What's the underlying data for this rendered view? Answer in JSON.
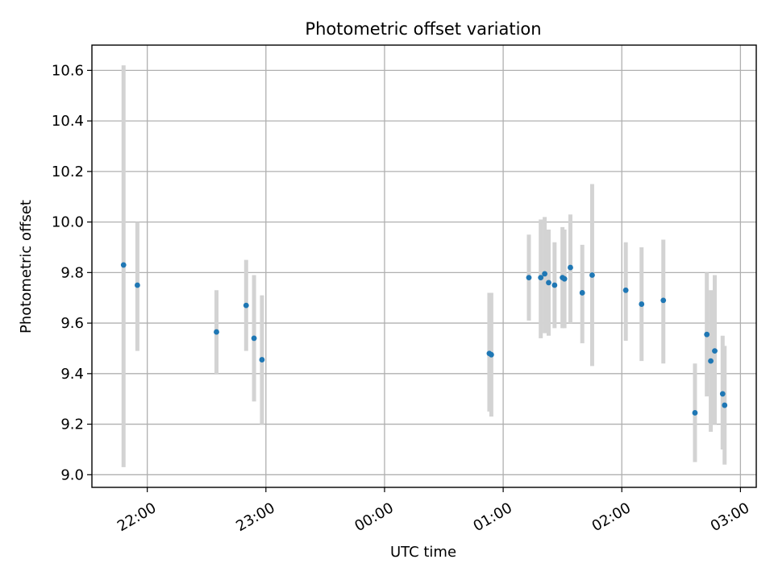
{
  "chart_data": {
    "type": "scatter",
    "title": "Photometric offset variation",
    "xlabel": "UTC time",
    "ylabel": "Photometric offset",
    "xlim": [
      "21:32",
      "03:08"
    ],
    "ylim": [
      8.95,
      10.7
    ],
    "grid": true,
    "x_ticks": [
      "22:00",
      "23:00",
      "00:00",
      "01:00",
      "02:00",
      "03:00"
    ],
    "y_ticks": [
      "9.0",
      "9.2",
      "9.4",
      "9.6",
      "9.8",
      "10.0",
      "10.2",
      "10.4",
      "10.6"
    ],
    "colors": {
      "point": "#1f77b4",
      "errorbar": "#d3d3d3"
    },
    "series": [
      {
        "points": [
          {
            "x": "21:48",
            "y": 9.83,
            "ylow": 9.03,
            "yhigh": 10.62
          },
          {
            "x": "21:55",
            "y": 9.75,
            "ylow": 9.49,
            "yhigh": 10.0
          },
          {
            "x": "22:35",
            "y": 9.565,
            "ylow": 9.4,
            "yhigh": 9.73
          },
          {
            "x": "22:50",
            "y": 9.67,
            "ylow": 9.49,
            "yhigh": 9.85
          },
          {
            "x": "22:54",
            "y": 9.54,
            "ylow": 9.29,
            "yhigh": 9.79
          },
          {
            "x": "22:58",
            "y": 9.455,
            "ylow": 9.2,
            "yhigh": 9.71
          },
          {
            "x": "00:53",
            "y": 9.48,
            "ylow": 9.25,
            "yhigh": 9.72
          },
          {
            "x": "00:54",
            "y": 9.475,
            "ylow": 9.23,
            "yhigh": 9.72
          },
          {
            "x": "01:13",
            "y": 9.78,
            "ylow": 9.61,
            "yhigh": 9.95
          },
          {
            "x": "01:19",
            "y": 9.78,
            "ylow": 9.54,
            "yhigh": 10.01
          },
          {
            "x": "01:21",
            "y": 9.795,
            "ylow": 9.56,
            "yhigh": 10.02
          },
          {
            "x": "01:23",
            "y": 9.76,
            "ylow": 9.55,
            "yhigh": 9.97
          },
          {
            "x": "01:26",
            "y": 9.75,
            "ylow": 9.58,
            "yhigh": 9.92
          },
          {
            "x": "01:30",
            "y": 9.78,
            "ylow": 9.58,
            "yhigh": 9.98
          },
          {
            "x": "01:31",
            "y": 9.775,
            "ylow": 9.58,
            "yhigh": 9.97
          },
          {
            "x": "01:34",
            "y": 9.82,
            "ylow": 9.6,
            "yhigh": 10.03
          },
          {
            "x": "01:40",
            "y": 9.72,
            "ylow": 9.52,
            "yhigh": 9.91
          },
          {
            "x": "01:45",
            "y": 9.79,
            "ylow": 9.43,
            "yhigh": 10.15
          },
          {
            "x": "02:02",
            "y": 9.73,
            "ylow": 9.53,
            "yhigh": 9.92
          },
          {
            "x": "02:10",
            "y": 9.675,
            "ylow": 9.45,
            "yhigh": 9.9
          },
          {
            "x": "02:21",
            "y": 9.69,
            "ylow": 9.44,
            "yhigh": 9.93
          },
          {
            "x": "02:37",
            "y": 9.245,
            "ylow": 9.05,
            "yhigh": 9.44
          },
          {
            "x": "02:43",
            "y": 9.555,
            "ylow": 9.31,
            "yhigh": 9.8
          },
          {
            "x": "02:45",
            "y": 9.45,
            "ylow": 9.17,
            "yhigh": 9.73
          },
          {
            "x": "02:47",
            "y": 9.49,
            "ylow": 9.2,
            "yhigh": 9.79
          },
          {
            "x": "02:51",
            "y": 9.32,
            "ylow": 9.1,
            "yhigh": 9.55
          },
          {
            "x": "02:52",
            "y": 9.275,
            "ylow": 9.04,
            "yhigh": 9.51
          }
        ]
      }
    ]
  }
}
